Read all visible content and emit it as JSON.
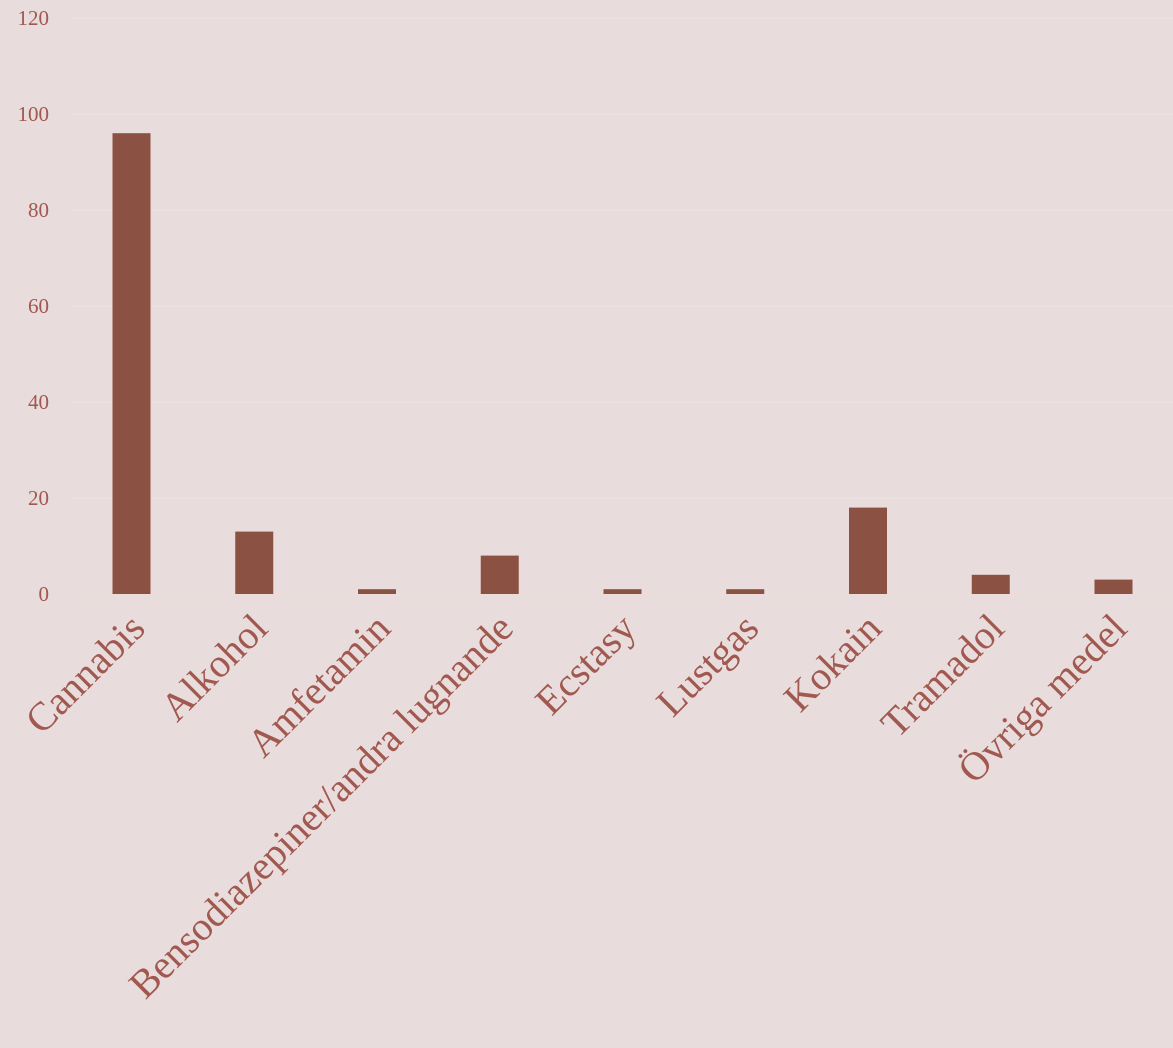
{
  "chart_data": {
    "type": "bar",
    "categories": [
      "Cannabis",
      "Alkohol",
      "Amfetamin",
      "Bensodiazepiner/andra lugnande",
      "Ecstasy",
      "Lustgas",
      "Kokain",
      "Tramadol",
      "Övriga medel"
    ],
    "values": [
      96,
      13,
      1,
      8,
      1,
      1,
      18,
      4,
      3
    ],
    "title": "",
    "xlabel": "",
    "ylabel": "",
    "ylim": [
      0,
      120
    ],
    "yticks": [
      0,
      20,
      40,
      60,
      80,
      100,
      120
    ],
    "grid": true,
    "legend": "none",
    "colors": {
      "background": "#E8DCDC",
      "bar": "#8B5142",
      "text": "#A0584F",
      "grid": "#EFE3E1",
      "baseline": "#EEDCDA"
    }
  }
}
